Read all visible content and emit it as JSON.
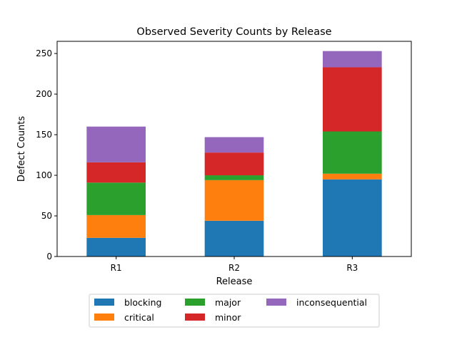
{
  "chart_data": {
    "type": "bar",
    "stacked": true,
    "title": "Observed Severity Counts by Release",
    "xlabel": "Release",
    "ylabel": "Defect Counts",
    "categories": [
      "R1",
      "R2",
      "R3"
    ],
    "ylim": [
      0,
      265
    ],
    "yticks": [
      0,
      50,
      100,
      150,
      200,
      250
    ],
    "grid": false,
    "legend_position": "bottom-center",
    "series": [
      {
        "name": "blocking",
        "color": "#1f77b4",
        "values": [
          23,
          44,
          95
        ]
      },
      {
        "name": "critical",
        "color": "#ff7f0e",
        "values": [
          28,
          50,
          7
        ]
      },
      {
        "name": "major",
        "color": "#2ca02c",
        "values": [
          40,
          6,
          52
        ]
      },
      {
        "name": "minor",
        "color": "#d62728",
        "values": [
          25,
          28,
          79
        ]
      },
      {
        "name": "inconsequential",
        "color": "#9467bd",
        "values": [
          44,
          19,
          20
        ]
      }
    ]
  }
}
